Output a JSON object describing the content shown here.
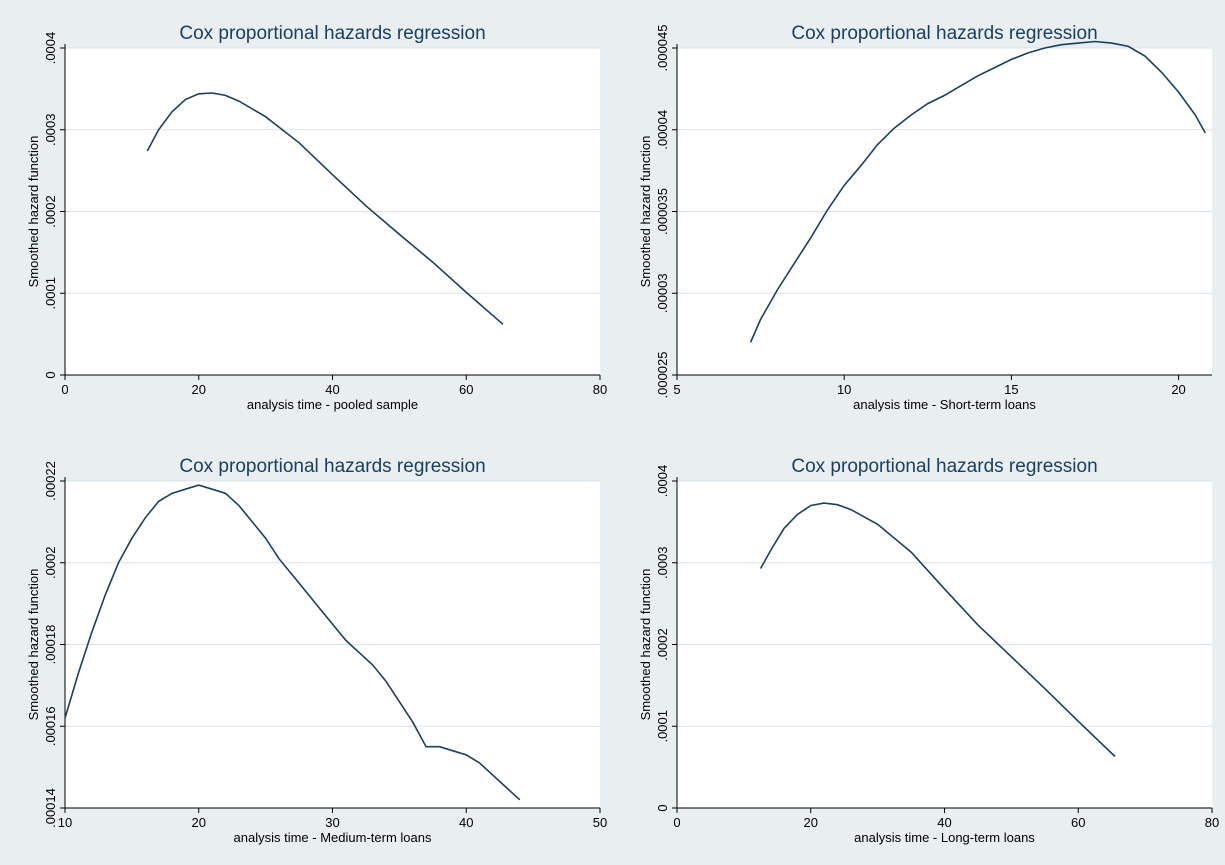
{
  "chart_data": [
    {
      "type": "line",
      "title": "Cox proportional hazards regression",
      "xlabel": "analysis time - pooled sample",
      "ylabel": "Smoothed hazard function",
      "xlim": [
        0,
        80
      ],
      "ylim": [
        0,
        0.0004
      ],
      "xticks": [
        0,
        20,
        40,
        60,
        80
      ],
      "xtick_labels": [
        "0",
        "20",
        "40",
        "60",
        "80"
      ],
      "yticks": [
        0,
        0.0001,
        0.0002,
        0.0003,
        0.0004
      ],
      "ytick_labels": [
        "0",
        ".0001",
        ".0002",
        ".0003",
        ".0004"
      ],
      "grid": true,
      "x": [
        12.3,
        14,
        16,
        18,
        20,
        22,
        24,
        26,
        30,
        35,
        40,
        45,
        50,
        55,
        60,
        65.5
      ],
      "y": [
        0.000274,
        0.0003,
        0.000322,
        0.000337,
        0.000344,
        0.000345,
        0.000342,
        0.000335,
        0.000316,
        0.000284,
        0.000245,
        0.000207,
        0.000172,
        0.000138,
        0.000101,
        6.2e-05
      ]
    },
    {
      "type": "line",
      "title": "Cox proportional hazards regression",
      "xlabel": "analysis time - Short-term loans",
      "ylabel": "Smoothed hazard function",
      "xlim": [
        5,
        21
      ],
      "ylim": [
        2.5e-05,
        4.5e-05
      ],
      "xticks": [
        5,
        10,
        15,
        20
      ],
      "xtick_labels": [
        "5",
        "10",
        "15",
        "20"
      ],
      "yticks": [
        2.5e-05,
        3e-05,
        3.5e-05,
        4e-05,
        4.5e-05
      ],
      "ytick_labels": [
        ".000025",
        ".00003",
        ".000035",
        ".00004",
        ".000045"
      ],
      "grid": true,
      "x": [
        7.2,
        7.5,
        8,
        8.5,
        9,
        9.5,
        10,
        10.5,
        11,
        11.5,
        12,
        12.5,
        13,
        13.5,
        14,
        14.5,
        15,
        15.5,
        16,
        16.5,
        17,
        17.5,
        18,
        18.5,
        19,
        19.5,
        20,
        20.5,
        20.8
      ],
      "y": [
        2.7e-05,
        2.84e-05,
        3.02e-05,
        3.18e-05,
        3.34e-05,
        3.51e-05,
        3.66e-05,
        3.78e-05,
        3.91e-05,
        4.01e-05,
        4.09e-05,
        4.16e-05,
        4.21e-05,
        4.27e-05,
        4.33e-05,
        4.38e-05,
        4.43e-05,
        4.47e-05,
        4.5e-05,
        4.52e-05,
        4.53e-05,
        4.54e-05,
        4.53e-05,
        4.51e-05,
        4.45e-05,
        4.35e-05,
        4.23e-05,
        4.09e-05,
        3.98e-05
      ]
    },
    {
      "type": "line",
      "title": "Cox proportional hazards regression",
      "xlabel": "analysis time - Medium-term loans",
      "ylabel": "Smoothed hazard function",
      "xlim": [
        10,
        50
      ],
      "ylim": [
        0.00014,
        0.00022
      ],
      "xticks": [
        10,
        20,
        30,
        40,
        50
      ],
      "xtick_labels": [
        "10",
        "20",
        "30",
        "40",
        "50"
      ],
      "yticks": [
        0.00014,
        0.00016,
        0.00018,
        0.0002,
        0.00022
      ],
      "ytick_labels": [
        ".00014",
        ".00016",
        ".00018",
        ".0002",
        ".00022"
      ],
      "grid": true,
      "x": [
        10,
        11,
        12,
        13,
        14,
        15,
        16,
        17,
        18,
        19,
        20,
        21,
        22,
        23,
        24,
        25,
        26,
        27,
        28,
        29,
        30,
        31,
        32,
        33,
        34,
        35,
        36,
        37,
        38,
        39,
        40,
        41,
        42,
        43,
        44
      ],
      "y": [
        0.000162,
        0.000173,
        0.000183,
        0.000192,
        0.0002,
        0.000206,
        0.000211,
        0.000215,
        0.000217,
        0.000218,
        0.000219,
        0.000218,
        0.000217,
        0.000214,
        0.00021,
        0.000206,
        0.000201,
        0.000197,
        0.000193,
        0.000189,
        0.000185,
        0.000181,
        0.000178,
        0.000175,
        0.000171,
        0.000166,
        0.000161,
        0.000155,
        0.000155,
        0.000154,
        0.000153,
        0.000151,
        0.000148,
        0.000145,
        0.000142
      ]
    },
    {
      "type": "line",
      "title": "Cox proportional hazards regression",
      "xlabel": "analysis time - Long-term loans",
      "ylabel": "Smoothed hazard function",
      "xlim": [
        0,
        80
      ],
      "ylim": [
        0,
        0.0004
      ],
      "xticks": [
        0,
        20,
        40,
        60,
        80
      ],
      "xtick_labels": [
        "0",
        "20",
        "40",
        "60",
        "80"
      ],
      "yticks": [
        0,
        0.0001,
        0.0002,
        0.0003,
        0.0004
      ],
      "ytick_labels": [
        "0",
        ".0001",
        ".0002",
        ".0003",
        ".0004"
      ],
      "grid": true,
      "x": [
        12.5,
        14,
        16,
        18,
        20,
        22,
        24,
        26,
        30,
        35,
        40,
        45,
        50,
        55,
        60,
        65.5
      ],
      "y": [
        0.000293,
        0.000315,
        0.000342,
        0.000359,
        0.00037,
        0.000373,
        0.000371,
        0.000365,
        0.000347,
        0.000313,
        0.000268,
        0.000224,
        0.000185,
        0.000146,
        0.000106,
        6.3e-05
      ]
    }
  ]
}
